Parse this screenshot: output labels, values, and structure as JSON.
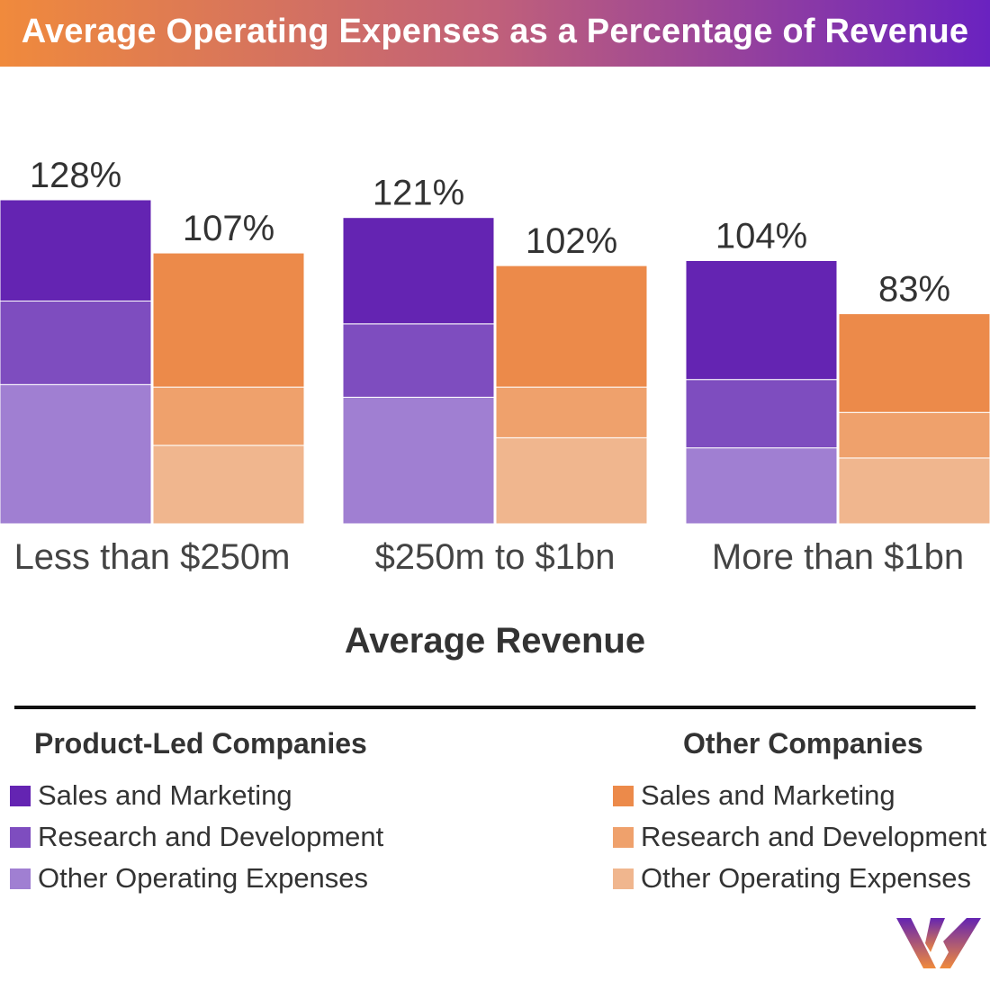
{
  "title": "Average Operating Expenses as a Percentage of Revenue",
  "chart_data": {
    "type": "stacked-bar",
    "title": "Average Operating Expenses as a Percentage of Revenue",
    "xlabel": "Average Revenue",
    "ylabel": "",
    "unit": "%",
    "categories": [
      "Less than $250m",
      "$250m to $1bn",
      "More than $1bn"
    ],
    "groups": [
      {
        "name": "Product-Led Companies",
        "totals": [
          128,
          121,
          104
        ],
        "total_labels": [
          "128%",
          "121%",
          "104%"
        ],
        "series": [
          {
            "name": "Other Operating Expenses",
            "values": [
              55,
              50,
              30
            ],
            "color": "#a07fd2"
          },
          {
            "name": "Research and Development",
            "values": [
              33,
              29,
              27
            ],
            "color": "#7e4dbf"
          },
          {
            "name": "Sales and Marketing",
            "values": [
              40,
              42,
              47
            ],
            "color": "#6424b2"
          }
        ]
      },
      {
        "name": "Other Companies",
        "totals": [
          107,
          102,
          83
        ],
        "total_labels": [
          "107%",
          "102%",
          "83%"
        ],
        "series": [
          {
            "name": "Other Operating Expenses",
            "values": [
              31,
              34,
              26
            ],
            "color": "#f0b68e"
          },
          {
            "name": "Research and Development",
            "values": [
              23,
              20,
              18
            ],
            "color": "#efa16c"
          },
          {
            "name": "Sales and Marketing",
            "values": [
              53,
              48,
              39
            ],
            "color": "#ec8a4a"
          }
        ]
      }
    ],
    "grid": false,
    "legend_placement": "bottom"
  },
  "legend": {
    "product_led": {
      "heading": "Product-Led Companies",
      "items": [
        {
          "label": "Sales and Marketing",
          "color": "#6424b2"
        },
        {
          "label": "Research and Development",
          "color": "#7e4dbf"
        },
        {
          "label": "Other Operating Expenses",
          "color": "#a07fd2"
        }
      ]
    },
    "other": {
      "heading": "Other Companies",
      "items": [
        {
          "label": "Sales and Marketing",
          "color": "#ec8a4a"
        },
        {
          "label": "Research and Development",
          "color": "#efa16c"
        },
        {
          "label": "Other Operating Expenses",
          "color": "#f0b68e"
        }
      ]
    }
  },
  "logo": {
    "icon": "w-logo-icon",
    "gradient": [
      "#6424b2",
      "#f08a3c"
    ]
  }
}
